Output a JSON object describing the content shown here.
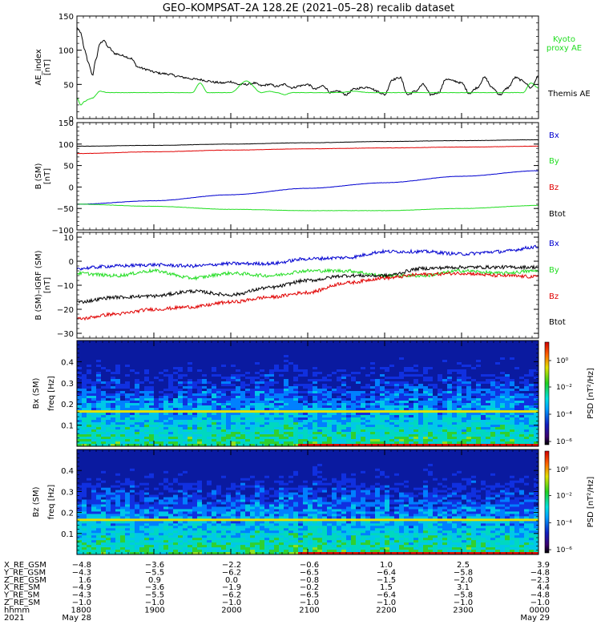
{
  "title": "GEO–KOMPSAT–2A 128.2E (2021–05–28) recalib dataset",
  "colors": {
    "black": "#000000",
    "red": "#e00000",
    "blue": "#0000d0",
    "green": "#22dd22"
  },
  "chart_data": [
    {
      "type": "line",
      "ylabel": "AE_index",
      "yunit": "[nT]",
      "ylim": [
        0,
        150
      ],
      "yticks": [
        "0",
        "50",
        "100",
        "150"
      ],
      "yticks_values": [
        0,
        50,
        100,
        150
      ],
      "xlim_hours": [
        18,
        24
      ],
      "legend": [
        {
          "label": "Kyoto proxy AE",
          "color": "#22dd22"
        },
        {
          "label": "Themis AE",
          "color": "#000000"
        }
      ],
      "series": [
        {
          "name": "Themis AE",
          "color": "#000000",
          "x": [
            18.0,
            18.05,
            18.1,
            18.15,
            18.2,
            18.25,
            18.3,
            18.35,
            18.4,
            18.5,
            18.6,
            18.7,
            18.8,
            18.9,
            19.0,
            19.1,
            19.2,
            19.3,
            19.4,
            19.5,
            19.6,
            19.7,
            19.8,
            19.9,
            20.0,
            20.1,
            20.2,
            20.3,
            20.4,
            20.5,
            20.6,
            20.7,
            20.8,
            20.9,
            21.0,
            21.1,
            21.2,
            21.3,
            21.4,
            21.5,
            21.6,
            21.7,
            21.8,
            21.9,
            22.0,
            22.1,
            22.2,
            22.3,
            22.4,
            22.5,
            22.6,
            22.7,
            22.8,
            22.9,
            23.0,
            23.1,
            23.2,
            23.3,
            23.4,
            23.5,
            23.6,
            23.7,
            23.8,
            23.9,
            24.0
          ],
          "y": [
            133,
            125,
            100,
            82,
            63,
            88,
            110,
            115,
            105,
            95,
            92,
            88,
            75,
            72,
            68,
            66,
            65,
            62,
            60,
            58,
            57,
            55,
            53,
            52,
            54,
            50,
            50,
            52,
            48,
            50,
            47,
            50,
            45,
            48,
            50,
            43,
            48,
            38,
            40,
            35,
            43,
            45,
            46,
            40,
            35,
            57,
            60,
            35,
            40,
            50,
            35,
            38,
            58,
            55,
            52,
            37,
            45,
            60,
            45,
            35,
            45,
            60,
            55,
            45,
            62
          ]
        },
        {
          "name": "Kyoto proxy AE",
          "color": "#22dd22",
          "x": [
            18.0,
            18.05,
            18.1,
            18.15,
            18.2,
            18.3,
            18.4,
            18.5,
            18.6,
            18.8,
            19.0,
            19.2,
            19.3,
            19.4,
            19.5,
            19.6,
            19.7,
            19.8,
            20.0,
            20.2,
            20.4,
            20.5,
            20.6,
            20.7,
            20.8,
            21.0,
            21.2,
            21.4,
            21.6,
            21.8,
            22.0,
            22.2,
            22.4,
            22.6,
            22.8,
            23.0,
            23.2,
            23.4,
            23.6,
            23.8,
            23.9,
            24.0
          ],
          "y": [
            30,
            20,
            25,
            28,
            30,
            40,
            38,
            38,
            38,
            38,
            38,
            38,
            38,
            38,
            38,
            52,
            38,
            38,
            38,
            55,
            38,
            40,
            38,
            35,
            38,
            38,
            38,
            38,
            40,
            38,
            38,
            38,
            38,
            38,
            38,
            38,
            38,
            38,
            38,
            38,
            52,
            45
          ]
        }
      ]
    },
    {
      "type": "line",
      "ylabel": "B (SM)",
      "yunit": "[nT]",
      "ylim": [
        -100,
        150
      ],
      "yticks": [
        "−100",
        "−50",
        "0",
        "50",
        "100",
        "150"
      ],
      "yticks_values": [
        -100,
        -50,
        0,
        50,
        100,
        150
      ],
      "xlim_hours": [
        18,
        24
      ],
      "legend": [
        {
          "label": "Bx",
          "color": "#0000d0"
        },
        {
          "label": "By",
          "color": "#22dd22"
        },
        {
          "label": "Bz",
          "color": "#e00000"
        },
        {
          "label": "Btot",
          "color": "#000000"
        }
      ],
      "series": [
        {
          "name": "Btot",
          "color": "#000000",
          "x": [
            18,
            19,
            20,
            21,
            22,
            23,
            24
          ],
          "y": [
            95,
            97,
            100,
            103,
            106,
            108,
            110
          ]
        },
        {
          "name": "Bz",
          "color": "#e00000",
          "x": [
            18,
            19,
            20,
            21,
            22,
            23,
            24
          ],
          "y": [
            78,
            82,
            86,
            89,
            91,
            93,
            95
          ]
        },
        {
          "name": "Bx",
          "color": "#0000d0",
          "x": [
            18,
            19,
            20,
            21,
            22,
            23,
            24
          ],
          "y": [
            -40,
            -32,
            -18,
            -3,
            10,
            25,
            38
          ]
        },
        {
          "name": "By",
          "color": "#22dd22",
          "x": [
            18,
            19,
            20,
            21,
            22,
            23,
            24
          ],
          "y": [
            -40,
            -45,
            -52,
            -55,
            -55,
            -50,
            -43
          ]
        }
      ]
    },
    {
      "type": "line",
      "ylabel": "B (SM)–IGRF (SM)",
      "yunit": "[nT]",
      "ylim": [
        -32,
        12
      ],
      "yticks": [
        "−30",
        "−20",
        "−10",
        "0",
        "10"
      ],
      "yticks_values": [
        -30,
        -20,
        -10,
        0,
        10
      ],
      "xlim_hours": [
        18,
        24
      ],
      "legend": [
        {
          "label": "Bx",
          "color": "#0000d0"
        },
        {
          "label": "By",
          "color": "#22dd22"
        },
        {
          "label": "Bz",
          "color": "#e00000"
        },
        {
          "label": "Btot",
          "color": "#000000"
        }
      ],
      "series": [
        {
          "name": "Bx",
          "color": "#0000d0",
          "x": [
            18,
            18.5,
            19,
            19.5,
            20,
            20.5,
            21,
            21.5,
            22,
            22.5,
            23,
            23.5,
            24
          ],
          "y": [
            -3,
            -2,
            -1.5,
            -2,
            -1,
            -1,
            1,
            1.5,
            4,
            4,
            3,
            4,
            6
          ]
        },
        {
          "name": "By",
          "color": "#22dd22",
          "x": [
            18,
            18.5,
            19,
            19.5,
            20,
            20.5,
            21,
            21.5,
            22,
            22.5,
            23,
            23.5,
            24
          ],
          "y": [
            -5,
            -6,
            -4,
            -7,
            -5,
            -6,
            -4,
            -4,
            -6,
            -6,
            -4,
            -5,
            -4
          ]
        },
        {
          "name": "Btot",
          "color": "#000000",
          "x": [
            18,
            18.5,
            19,
            19.5,
            20,
            20.5,
            21,
            21.5,
            22,
            22.5,
            23,
            23.5,
            24
          ],
          "y": [
            -17,
            -15,
            -14.5,
            -12.5,
            -14,
            -11,
            -8,
            -6,
            -6,
            -3,
            -2.5,
            -2.5,
            -2.5
          ]
        },
        {
          "name": "Bz",
          "color": "#e00000",
          "x": [
            18,
            18.5,
            19,
            19.5,
            20,
            20.5,
            21,
            21.5,
            22,
            22.5,
            23,
            23.5,
            24
          ],
          "y": [
            -24,
            -22,
            -20,
            -19,
            -17,
            -15,
            -13,
            -9,
            -7,
            -5.5,
            -5,
            -6,
            -6.5
          ]
        }
      ]
    },
    {
      "type": "heatmap",
      "ylabel": "Bx (SM)",
      "yunit": "freq [Hz]",
      "ylim": [
        0,
        0.5
      ],
      "yticks": [
        "0.1",
        "0.2",
        "0.3",
        "0.4"
      ],
      "yticks_values": [
        0.1,
        0.2,
        0.3,
        0.4
      ],
      "xlim_hours": [
        18,
        24
      ],
      "colorbar": {
        "label": "PSD [nT²/Hz]",
        "ticks": [
          "10⁰",
          "10⁻²",
          "10⁻⁴",
          "10⁻⁶"
        ]
      }
    },
    {
      "type": "heatmap",
      "ylabel": "Bz (SM)",
      "yunit": "freq [Hz]",
      "ylim": [
        0,
        0.5
      ],
      "yticks": [
        "0.1",
        "0.2",
        "0.3",
        "0.4"
      ],
      "yticks_values": [
        0.1,
        0.2,
        0.3,
        0.4
      ],
      "xlim_hours": [
        18,
        24
      ],
      "colorbar": {
        "label": "PSD [nT²/Hz]",
        "ticks": [
          "10⁰",
          "10⁻²",
          "10⁻⁴",
          "10⁻⁶"
        ]
      }
    }
  ],
  "xaxis_table": {
    "rows": [
      {
        "label": "X_RE_GSM",
        "values": [
          "−4.8",
          "−3.6",
          "−2.2",
          "−0.6",
          "1.0",
          "2.5",
          "3.9"
        ]
      },
      {
        "label": "Y_RE_GSM",
        "values": [
          "−4.3",
          "−5.5",
          "−6.2",
          "−6.5",
          "−6.4",
          "−5.8",
          "−4.8"
        ]
      },
      {
        "label": "Z_RE_GSM",
        "values": [
          "1.6",
          "0.9",
          "0.0",
          "−0.8",
          "−1.5",
          "−2.0",
          "−2.3"
        ]
      },
      {
        "label": "X_RE_SM",
        "values": [
          "−4.9",
          "−3.6",
          "−1.9",
          "−0.2",
          "1.5",
          "3.1",
          "4.4"
        ]
      },
      {
        "label": "Y_RE_SM",
        "values": [
          "−4.3",
          "−5.5",
          "−6.2",
          "−6.5",
          "−6.4",
          "−5.8",
          "−4.8"
        ]
      },
      {
        "label": "Z_RE_SM",
        "values": [
          "−1.0",
          "−1.0",
          "−1.0",
          "−1.0",
          "−1.0",
          "−1.0",
          "−1.0"
        ]
      },
      {
        "label": "hhmm",
        "values": [
          "1800",
          "1900",
          "2000",
          "2100",
          "2200",
          "2300",
          "0000"
        ]
      },
      {
        "label": "2021",
        "values": [
          "May 28",
          "",
          "",
          "",
          "",
          "",
          "May 29"
        ]
      }
    ]
  }
}
